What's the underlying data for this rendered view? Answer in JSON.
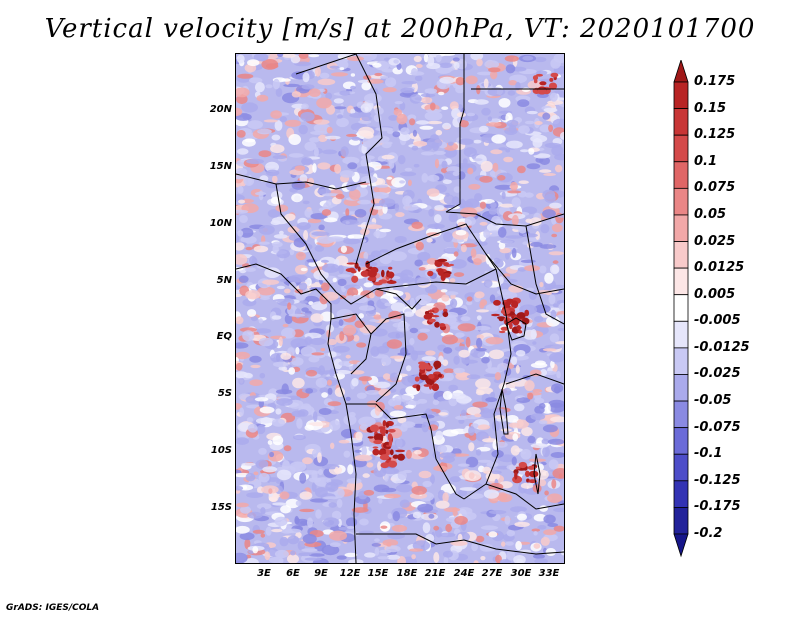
{
  "title": "Vertical velocity [m/s] at 200hPa, VT: 2020101700",
  "credit": "GrADS: IGES/COLA",
  "lat_labels": [
    "20N",
    "15N",
    "10N",
    "5N",
    "EQ",
    "5S",
    "10S",
    "15S"
  ],
  "lon_labels": [
    "3E",
    "6E",
    "9E",
    "12E",
    "15E",
    "18E",
    "21E",
    "24E",
    "27E",
    "30E",
    "33E"
  ],
  "colorbar": {
    "levels": [
      "0.175",
      "0.15",
      "0.125",
      "0.1",
      "0.075",
      "0.05",
      "0.025",
      "0.0125",
      "0.005",
      "-0.005",
      "-0.0125",
      "-0.025",
      "-0.05",
      "-0.075",
      "-0.1",
      "-0.125",
      "-0.175",
      "-0.2"
    ],
    "colors": [
      "#a01818",
      "#b82424",
      "#c83636",
      "#d44a4a",
      "#e06666",
      "#ea8686",
      "#f2a8a8",
      "#f8caca",
      "#fce6e6",
      "#ffffff",
      "#e6e6fb",
      "#c9c9f4",
      "#aaaaec",
      "#8a8ae2",
      "#6b6bd8",
      "#4d4dc9",
      "#3333b4",
      "#22229a",
      "#16168a"
    ]
  }
}
